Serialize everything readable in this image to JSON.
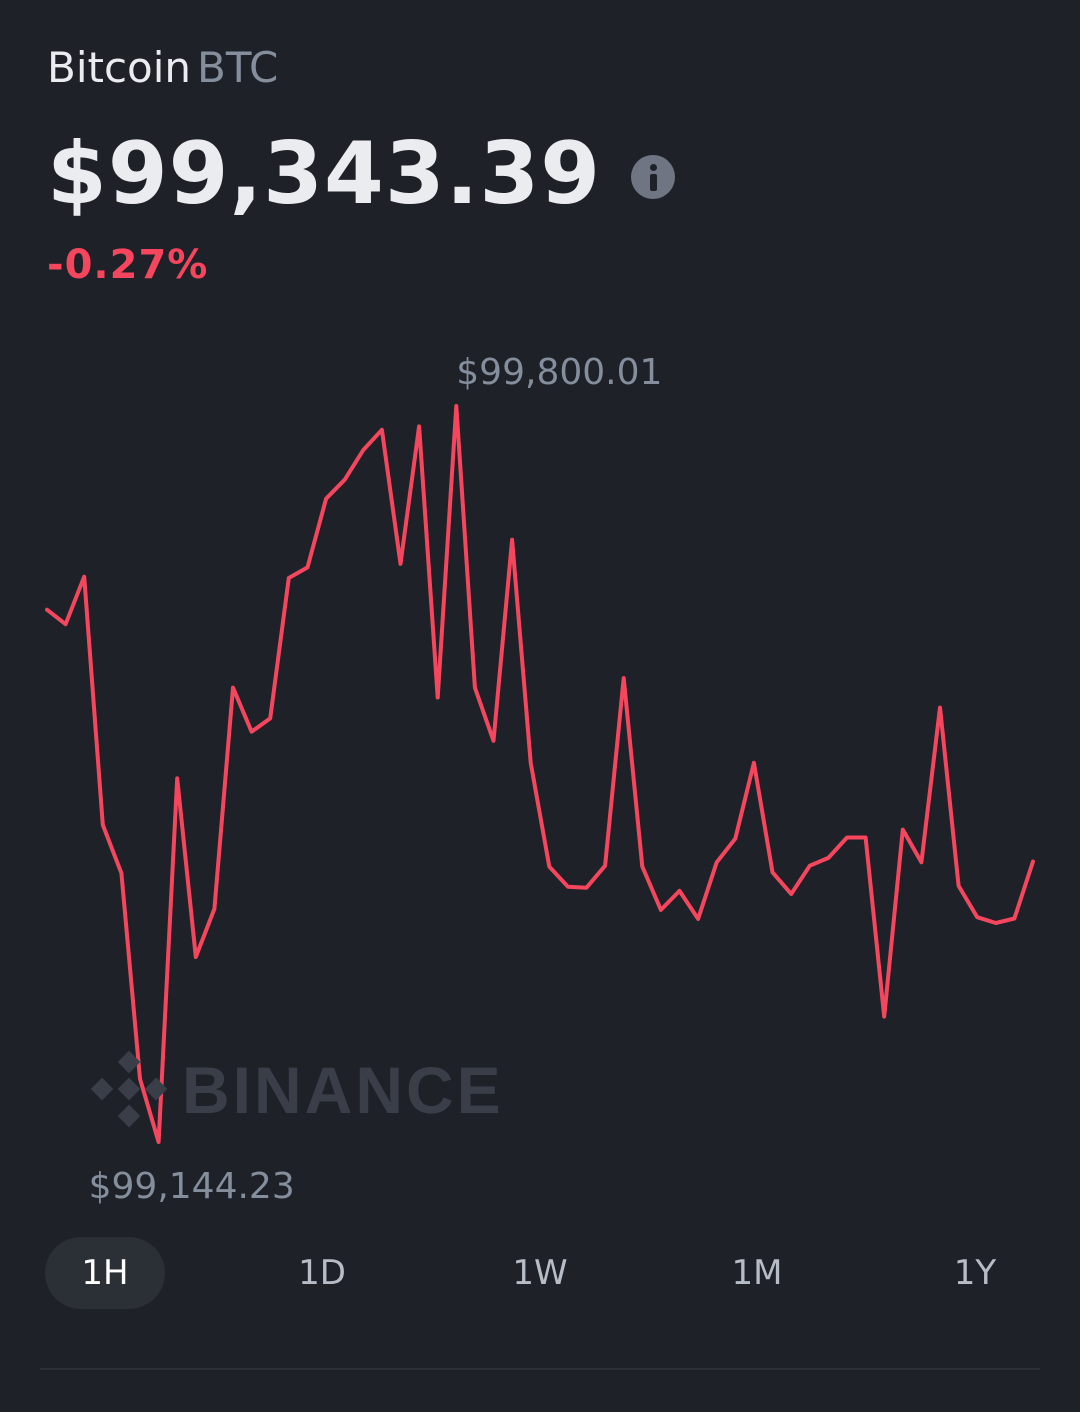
{
  "asset": {
    "name": "Bitcoin",
    "symbol": "BTC",
    "price": "$99,343.39",
    "change": "-0.27%"
  },
  "watermark": "BINANCE",
  "tabs": [
    "1H",
    "1D",
    "1W",
    "1M",
    "1Y"
  ],
  "active_tab": "1H",
  "colors": {
    "background": "#1f2129",
    "line": "#f6465d",
    "negative": "#f6465d",
    "muted_text": "#848e9c"
  },
  "chart_data": {
    "type": "line",
    "title": "",
    "xlabel": "",
    "ylabel": "",
    "ylim": [
      99144.23,
      99800.01
    ],
    "grid": false,
    "max_label": "$99,800.01",
    "min_label": "$99,144.23",
    "series": [
      {
        "values": [
          99618.5,
          99605.6,
          99647.9,
          99426.8,
          99383.7,
          99200.5,
          99144.23,
          99468.2,
          99309.1,
          99351.9,
          99549.1,
          99509.8,
          99521.7,
          99646.8,
          99656.2,
          99717.4,
          99734.3,
          99760.8,
          99778.8,
          99659.3,
          99781.8,
          99540.3,
          99800.01,
          99549.1,
          99501.7,
          99680.8,
          99482.1,
          99389.6,
          99371.7,
          99370.8,
          99390.4,
          99557.6,
          99389.6,
          99351.0,
          99368.0,
          99343.0,
          99393.4,
          99414.6,
          99482.1,
          99384.5,
          99365.2,
          99390.4,
          99397.4,
          99415.5,
          99415.5,
          99256.0,
          99422.6,
          99393.4,
          99531.3,
          99372.5,
          99344.5,
          99339.4,
          99343.4,
          99394.2
        ]
      }
    ]
  }
}
